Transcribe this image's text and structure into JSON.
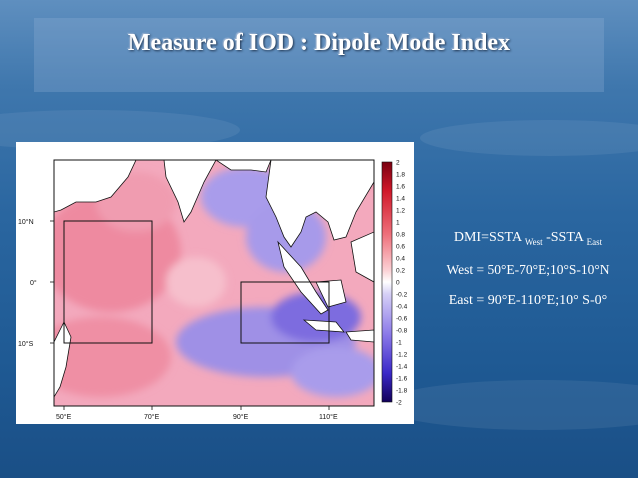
{
  "slide": {
    "title": "Measure of IOD : Dipole Mode Index"
  },
  "map": {
    "lat_labels": [
      "10°N",
      "0°",
      "10°S"
    ],
    "lon_labels": [
      "50°E",
      "70°E",
      "90°E",
      "110°E"
    ],
    "colorbar_labels": [
      "2",
      "1.8",
      "1.6",
      "1.4",
      "1.2",
      "1",
      "0.8",
      "0.6",
      "0.4",
      "0.2",
      "0",
      "-0.2",
      "-0.4",
      "-0.6",
      "-0.8",
      "-1",
      "-1.2",
      "-1.4",
      "-1.6",
      "-1.8",
      "-2"
    ],
    "colors": {
      "positive": "#e8323c",
      "negative": "#3a28c8",
      "land": "#ffffff"
    }
  },
  "formulas": {
    "dmi_prefix": "DMI=SSTA",
    "dmi_sub_west": "West",
    "dmi_mid": " -SSTA",
    "dmi_sub_east": "East",
    "west": "West = 50°E-70°E;10°S-10°N",
    "east": "East = 90°E-110°E;10° S-0°"
  }
}
